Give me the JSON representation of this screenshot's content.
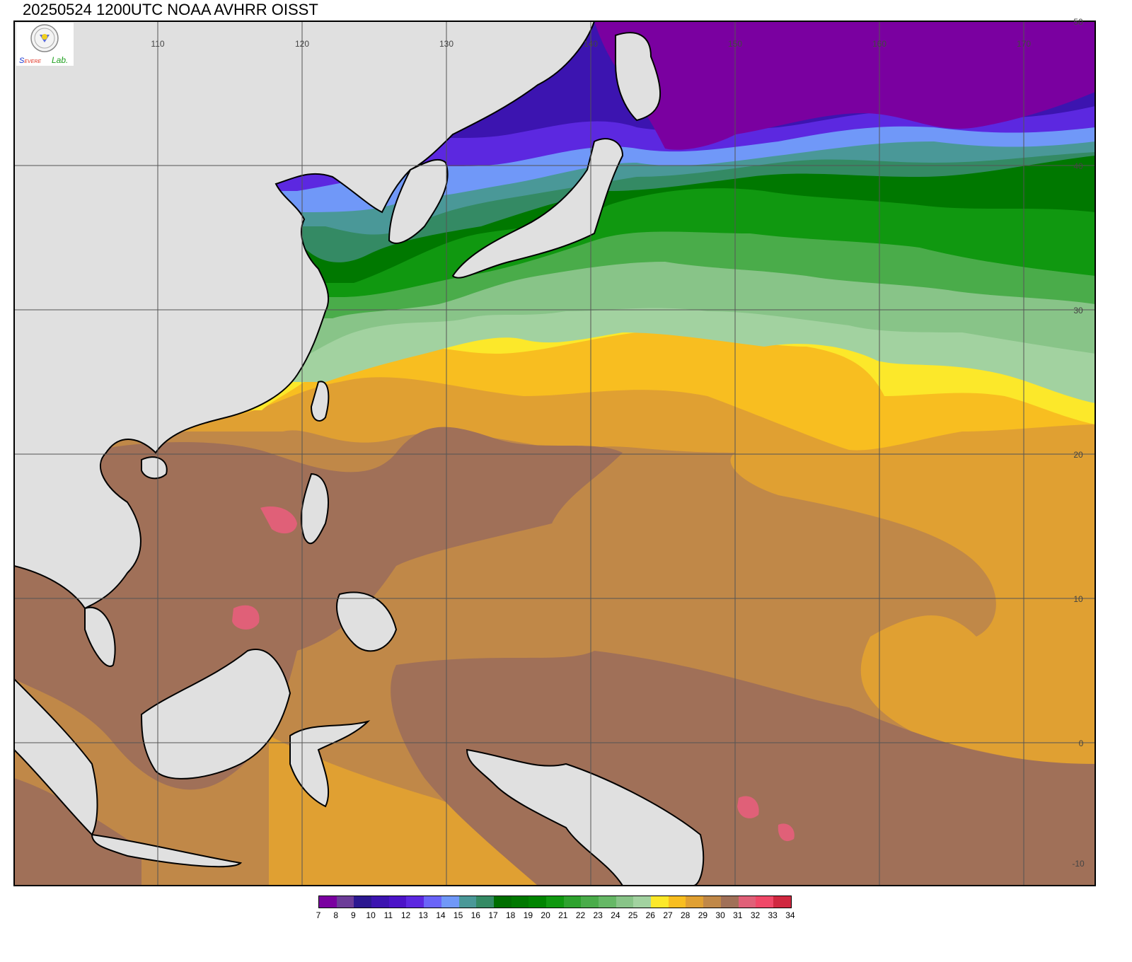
{
  "title": "20250524 1200UTC NOAA AVHRR OISST",
  "logo": {
    "text": "Severe Storm Lab.",
    "icon": "seal-icon"
  },
  "map": {
    "lon_ticks": [
      "110",
      "120",
      "130",
      "140",
      "150",
      "160",
      "170"
    ],
    "lat_ticks": [
      "50",
      "40",
      "30",
      "20",
      "10",
      "0",
      "-10"
    ],
    "land_color": "#e0e0e0",
    "variable": "sea surface temperature (°C)"
  },
  "colorbar": {
    "labels": [
      "7",
      "8",
      "9",
      "10",
      "11",
      "12",
      "13",
      "14",
      "15",
      "16",
      "17",
      "18",
      "19",
      "20",
      "21",
      "22",
      "23",
      "24",
      "25",
      "26",
      "27",
      "28",
      "29",
      "30",
      "31",
      "32",
      "33",
      "34"
    ],
    "colors": [
      "#7a00a0",
      "#6c3c98",
      "#2c1890",
      "#3c14b0",
      "#4c14c8",
      "#5c28e0",
      "#6a64f8",
      "#7098f8",
      "#4a9898",
      "#348a64",
      "#006e00",
      "#007800",
      "#008400",
      "#109810",
      "#2ea22e",
      "#4aac4a",
      "#66b866",
      "#88c488",
      "#a2d2a0",
      "#fce82a",
      "#f8be20",
      "#e0a032",
      "#c08848",
      "#a07058",
      "#e06078",
      "#f04868",
      "#d02840"
    ]
  }
}
